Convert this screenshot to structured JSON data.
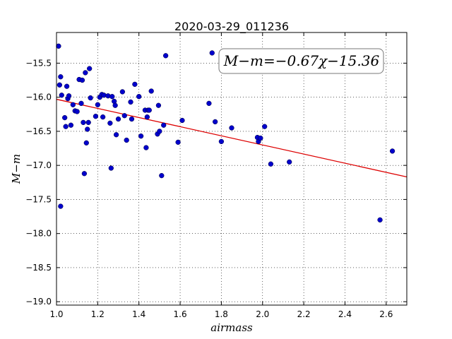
{
  "chart_data": {
    "type": "scatter",
    "title": "2020-03-29_011236",
    "xlabel": "airmass",
    "ylabel": "M−m",
    "xlim": [
      1.0,
      2.7
    ],
    "ylim": [
      -19.05,
      -15.05
    ],
    "xticks": [
      1.0,
      1.2,
      1.4,
      1.6,
      1.8,
      2.0,
      2.2,
      2.4,
      2.6
    ],
    "xtick_labels": [
      "1.0",
      "1.2",
      "1.4",
      "1.6",
      "1.8",
      "2.0",
      "2.2",
      "2.4",
      "2.6"
    ],
    "yticks": [
      -15.5,
      -16.0,
      -16.5,
      -17.0,
      -17.5,
      -18.0,
      -18.5,
      -19.0
    ],
    "ytick_labels": [
      "−15.5",
      "−16.0",
      "−16.5",
      "−17.0",
      "−17.5",
      "−18.0",
      "−18.5",
      "−19.0"
    ],
    "grid": true,
    "point_color": "#0000cc",
    "line_color": "#dd0000",
    "fit": {
      "slope": -0.67,
      "intercept": -15.36
    },
    "annotation": "M−m=−0.67χ−15.36",
    "x": [
      1.01,
      1.02,
      1.015,
      1.02,
      1.025,
      1.04,
      1.045,
      1.05,
      1.055,
      1.06,
      1.07,
      1.08,
      1.09,
      1.1,
      1.11,
      1.12,
      1.125,
      1.13,
      1.135,
      1.14,
      1.145,
      1.15,
      1.155,
      1.16,
      1.165,
      1.19,
      1.2,
      1.21,
      1.22,
      1.225,
      1.23,
      1.25,
      1.26,
      1.265,
      1.27,
      1.28,
      1.285,
      1.29,
      1.3,
      1.32,
      1.33,
      1.34,
      1.36,
      1.365,
      1.38,
      1.4,
      1.41,
      1.43,
      1.435,
      1.44,
      1.445,
      1.45,
      1.46,
      1.49,
      1.495,
      1.5,
      1.51,
      1.52,
      1.53,
      1.59,
      1.61,
      1.74,
      1.755,
      1.77,
      1.8,
      1.85,
      1.975,
      1.98,
      1.99,
      2.01,
      2.04,
      2.13,
      2.57,
      2.63
    ],
    "y": [
      -15.25,
      -15.7,
      -15.82,
      -17.6,
      -15.97,
      -16.3,
      -16.43,
      -15.84,
      -16.02,
      -15.98,
      -16.41,
      -16.11,
      -16.2,
      -16.21,
      -15.74,
      -16.09,
      -15.75,
      -16.37,
      -17.12,
      -15.64,
      -16.67,
      -16.47,
      -16.37,
      -15.58,
      -16.01,
      -16.28,
      -16.11,
      -16.0,
      -15.96,
      -16.29,
      -15.97,
      -15.98,
      -16.38,
      -17.04,
      -15.99,
      -16.06,
      -16.12,
      -16.55,
      -16.32,
      -15.92,
      -16.27,
      -16.63,
      -16.07,
      -16.32,
      -15.81,
      -15.99,
      -16.57,
      -16.19,
      -16.74,
      -16.29,
      -16.19,
      -16.19,
      -15.91,
      -16.54,
      -16.12,
      -16.5,
      -17.15,
      -16.41,
      -15.39,
      -16.66,
      -16.34,
      -16.09,
      -15.35,
      -16.36,
      -16.65,
      -16.45,
      -16.59,
      -16.65,
      -16.6,
      -16.43,
      -16.98,
      -16.95,
      -17.8,
      -16.79
    ]
  }
}
